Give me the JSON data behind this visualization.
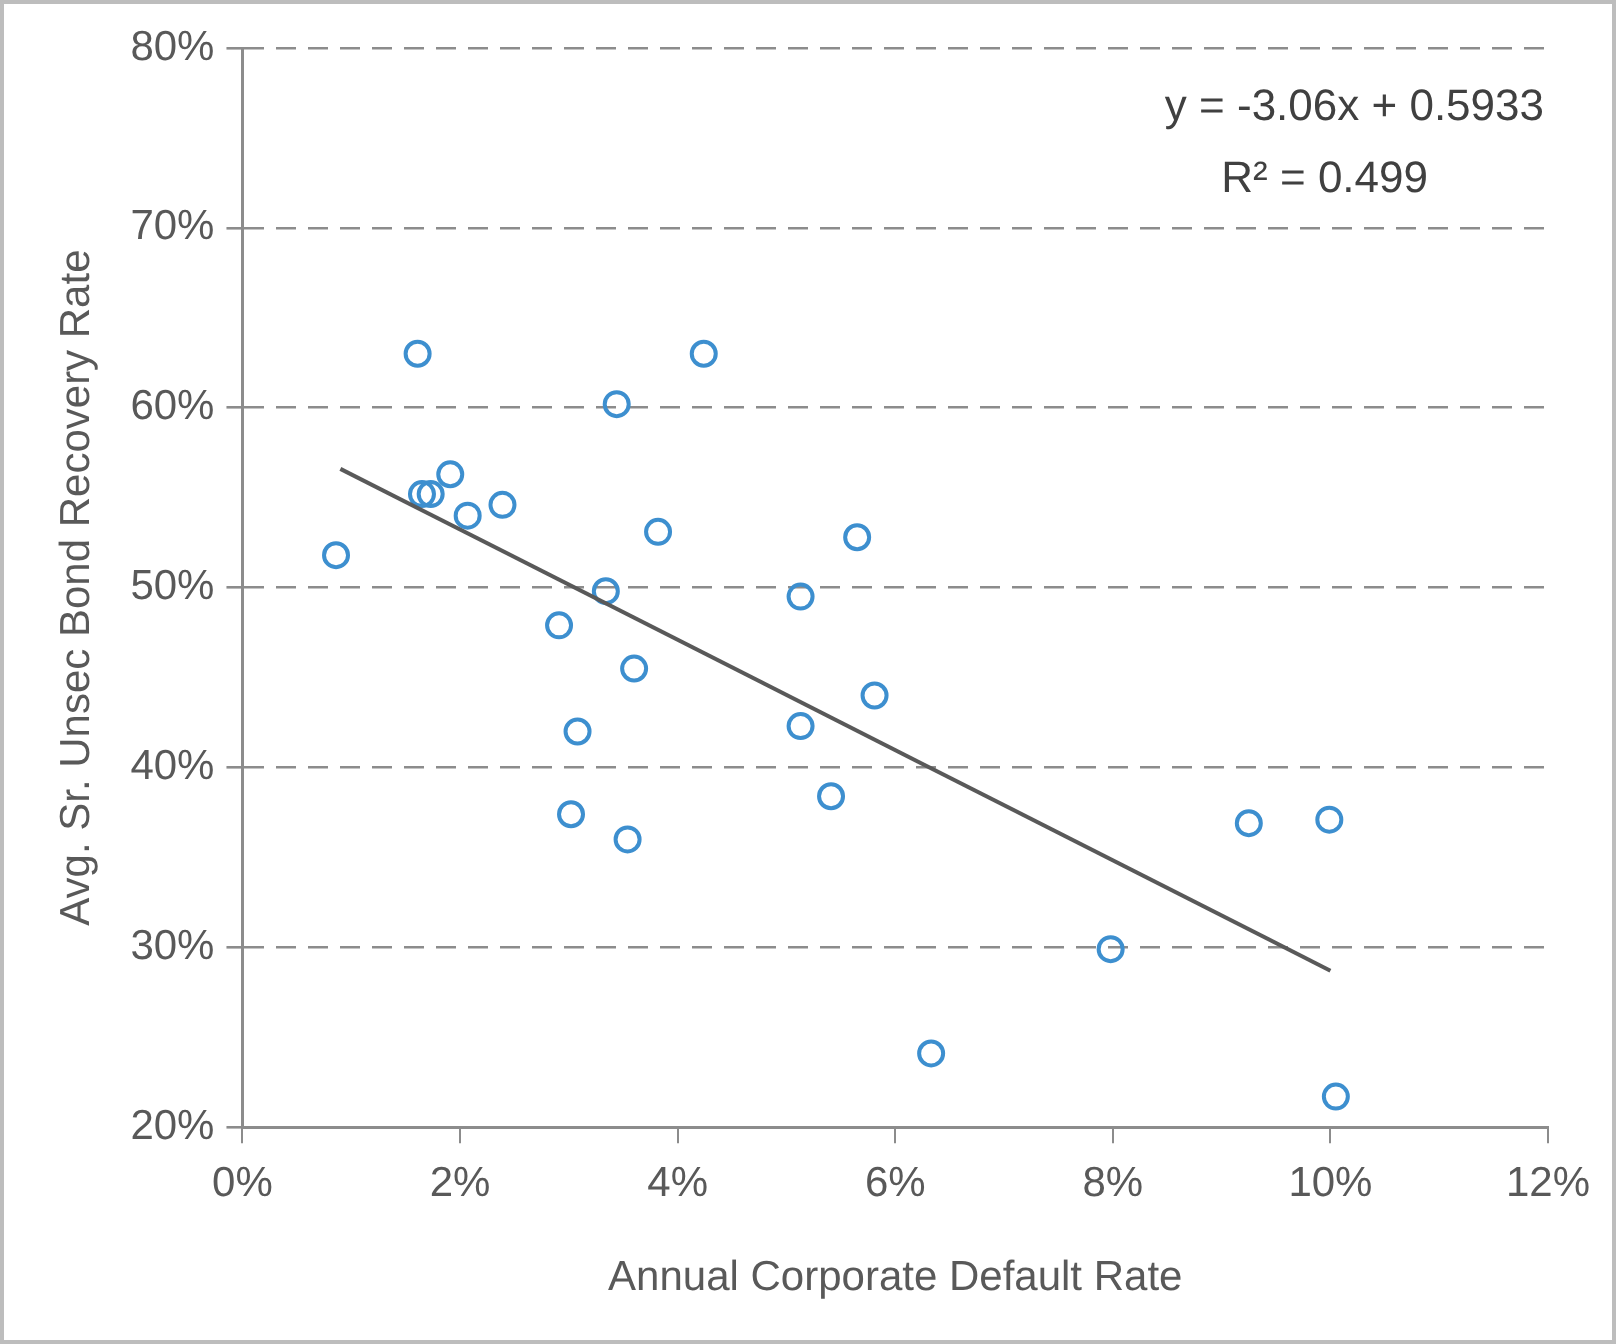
{
  "chart_data": {
    "type": "scatter",
    "xlabel": "Annual Corporate Default Rate",
    "ylabel": "Avg. Sr. Unsec Bond Recovery Rate",
    "annotations": [
      "y = -3.06x + 0.5933",
      "R² = 0.499"
    ],
    "xlim": [
      0,
      12
    ],
    "ylim": [
      20,
      80
    ],
    "xticks": [
      {
        "value": 0,
        "label": "0%"
      },
      {
        "value": 2,
        "label": "2%"
      },
      {
        "value": 4,
        "label": "4%"
      },
      {
        "value": 6,
        "label": "6%"
      },
      {
        "value": 8,
        "label": "8%"
      },
      {
        "value": 10,
        "label": "10%"
      },
      {
        "value": 12,
        "label": "12%"
      }
    ],
    "yticks": [
      {
        "value": 20,
        "label": "20%"
      },
      {
        "value": 30,
        "label": "30%"
      },
      {
        "value": 40,
        "label": "40%"
      },
      {
        "value": 50,
        "label": "50%"
      },
      {
        "value": 60,
        "label": "60%"
      },
      {
        "value": 70,
        "label": "70%"
      },
      {
        "value": 80,
        "label": "80%"
      }
    ],
    "grid": "y",
    "legend": false,
    "series": [
      {
        "type": "scatter",
        "marker": "circle",
        "color": "#3d8fcf",
        "x": [
          0.86,
          1.61,
          1.65,
          1.73,
          1.91,
          2.07,
          2.39,
          2.91,
          3.02,
          3.08,
          3.34,
          3.44,
          3.54,
          3.6,
          3.82,
          4.24,
          5.13,
          5.13,
          5.41,
          5.65,
          5.81,
          6.33,
          7.98,
          9.25,
          9.99,
          10.05
        ],
        "values": [
          51.8,
          63,
          55.2,
          55.2,
          56.3,
          54,
          54.6,
          47.9,
          37.4,
          42,
          49.8,
          60.2,
          36,
          45.5,
          53.1,
          63,
          49.5,
          42.3,
          38.4,
          52.8,
          44,
          24.1,
          29.9,
          36.9,
          37.1,
          21.7
        ]
      },
      {
        "type": "line",
        "marker": "none",
        "color": "#595959",
        "x": [
          0.9,
          10
        ],
        "values": [
          56.6,
          28.7
        ]
      }
    ]
  }
}
